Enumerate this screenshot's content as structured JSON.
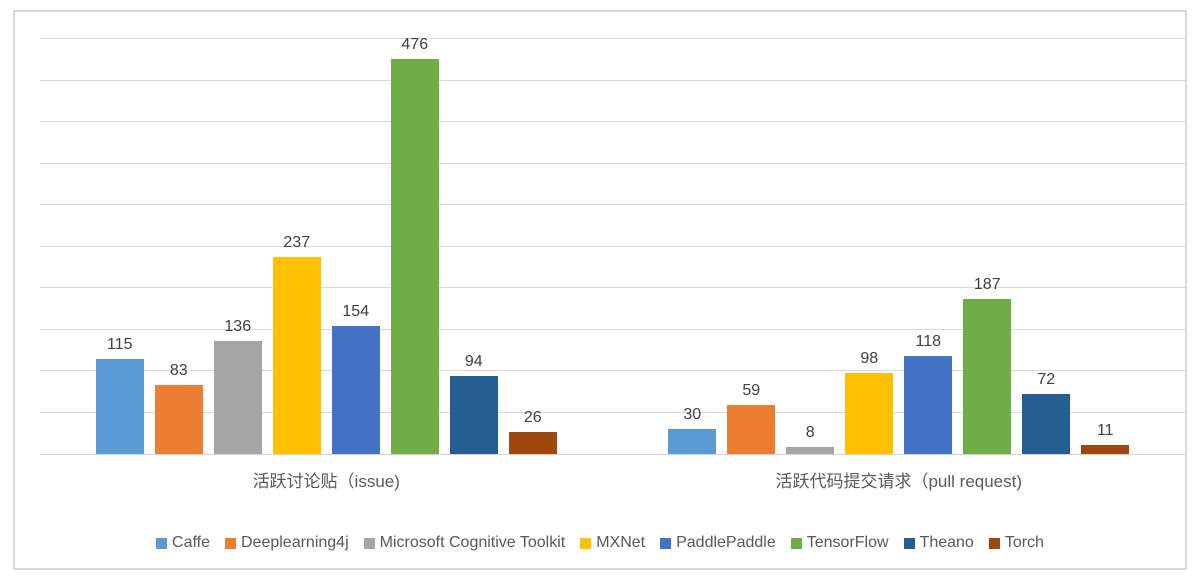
{
  "chart_data": {
    "type": "bar",
    "title": "",
    "xlabel": "",
    "ylabel": "",
    "ylim": [
      0,
      500
    ],
    "gridline_step": 50,
    "grid": true,
    "legend_position": "bottom",
    "y_axis_labels_visible": false,
    "categories": [
      "活跃讨论贴（issue)",
      "活跃代码提交请求（pull request)"
    ],
    "series": [
      {
        "name": "Caffe",
        "color": "#5B9BD5",
        "values": [
          115,
          30
        ]
      },
      {
        "name": "Deeplearning4j",
        "color": "#ED7D31",
        "values": [
          83,
          59
        ]
      },
      {
        "name": "Microsoft Cognitive Toolkit",
        "color": "#A5A5A5",
        "values": [
          136,
          8
        ]
      },
      {
        "name": "MXNet",
        "color": "#FFC000",
        "values": [
          237,
          98
        ]
      },
      {
        "name": "PaddlePaddle",
        "color": "#4472C4",
        "values": [
          154,
          118
        ]
      },
      {
        "name": "TensorFlow",
        "color": "#70AD47",
        "values": [
          476,
          187
        ]
      },
      {
        "name": "Theano",
        "color": "#255E91",
        "values": [
          94,
          72
        ]
      },
      {
        "name": "Torch",
        "color": "#9E480E",
        "values": [
          26,
          11
        ]
      }
    ]
  },
  "style": {
    "gridline_color": "#D9D9D9",
    "axis_color": "#D3D3D3",
    "frame_border_color": "#D9D9D9",
    "value_label_color": "#404040",
    "category_label_color": "#595959",
    "legend_text_color": "#595959"
  }
}
